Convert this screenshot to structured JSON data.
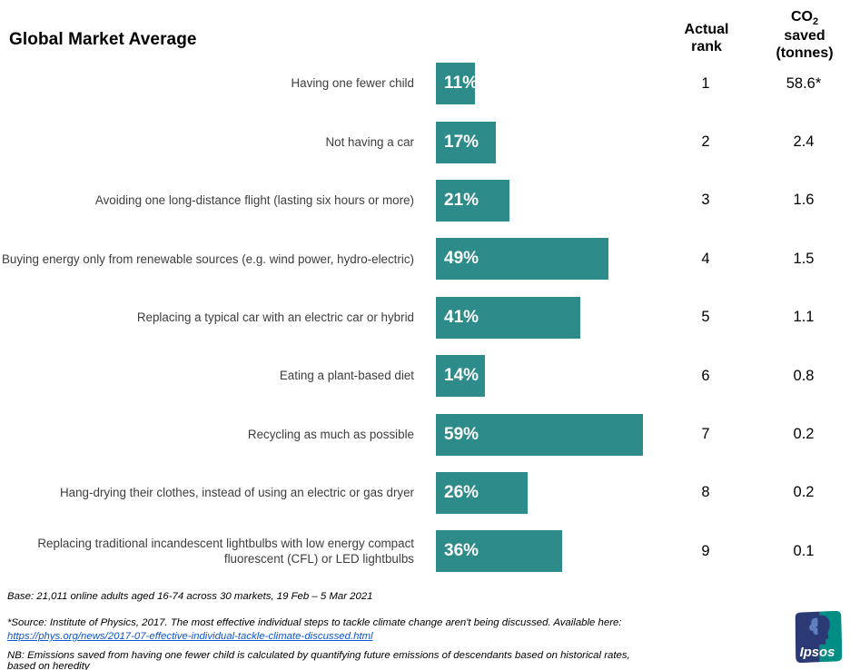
{
  "title": "Global Market Average",
  "headers": {
    "rank": "Actual\nrank",
    "co2_main": "CO",
    "co2_sub": "2",
    "co2_rest": "saved\n(tonnes)"
  },
  "chart_data": {
    "type": "bar",
    "orientation": "horizontal",
    "title": "Global Market Average",
    "unit": "%",
    "categories": [
      "Having one fewer child",
      "Not having a car",
      "Avoiding one long-distance flight (lasting six hours or more)",
      "Buying energy only from renewable sources (e.g. wind power, hydro-electric)",
      "Replacing a typical car with an electric car or hybrid",
      "Eating a plant-based diet",
      "Recycling as much as possible",
      "Hang-drying their clothes, instead of using an electric or gas dryer",
      "Replacing traditional incandescent lightbulbs with low energy compact fluorescent (CFL) or LED lightbulbs"
    ],
    "values": [
      11,
      17,
      21,
      49,
      41,
      14,
      59,
      26,
      36
    ],
    "actual_rank": [
      1,
      2,
      3,
      4,
      5,
      6,
      7,
      8,
      9
    ],
    "co2_saved_tonnes": [
      "58.6*",
      "2.4",
      "1.6",
      "1.5",
      "1.1",
      "0.8",
      "0.2",
      "0.2",
      "0.1"
    ],
    "column_headers": [
      "Actual rank",
      "CO2 saved (tonnes)"
    ],
    "bar_color": "#2D8C8A",
    "value_label_color": "#FFFFFF",
    "xlim": [
      0,
      62
    ],
    "grid": false,
    "legend": false
  },
  "footnotes": {
    "base": "Base: 21,011 online adults aged 16-74 across 30 markets,  19 Feb – 5 Mar 2021",
    "source": "*Source: Institute of Physics, 2017. The most effective individual steps to tackle climate change aren't being discussed. Available here:",
    "source_link": "https://phys.org/news/2017-07-effective-individual-tackle-climate-discussed.html",
    "nb": "NB: Emissions saved from having one fewer child is calculated by quantifying future emissions of descendants based on historical rates, based on heredity"
  },
  "logo": {
    "text": "Ipsos",
    "navy": "#2B3A74",
    "teal": "#008D86",
    "hair_blue": "#5F7FBE"
  }
}
